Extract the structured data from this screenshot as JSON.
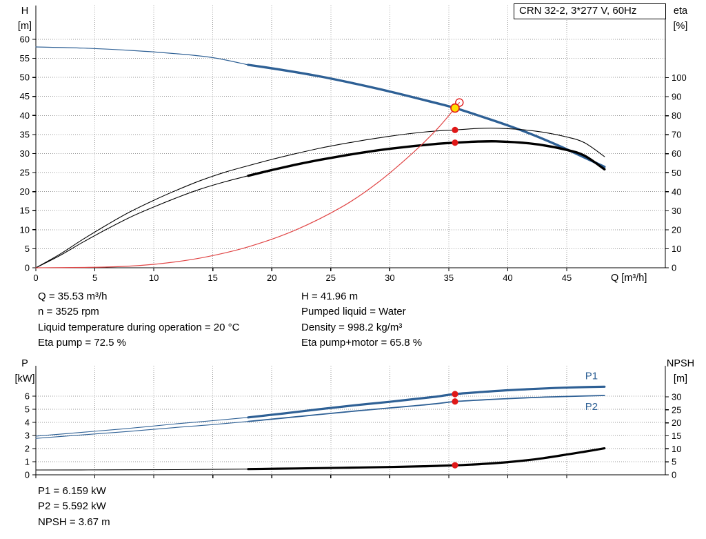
{
  "title_box": "CRN 32-2, 3*277 V, 60Hz",
  "duty_info": {
    "left": [
      "Q = 35.53 m³/h",
      "n = 3525 rpm",
      "Liquid temperature during operation = 20 °C",
      "Eta pump = 72.5 %"
    ],
    "right": [
      "H = 41.96 m",
      "Pumped liquid = Water",
      "Density = 998.2 kg/m³",
      "Eta pump+motor = 65.8 %"
    ],
    "bottom": [
      "P1 = 6.159 kW",
      "P2 = 5.592 kW",
      "NPSH = 3.67 m"
    ]
  },
  "colors": {
    "curve_blue": "#2e6095",
    "curve_black": "#000000",
    "curve_red": "#e04545",
    "marker_red": "#e01818",
    "duty_yellow": "#ffdf00"
  },
  "chart_data": [
    {
      "type": "line",
      "title": "CRN 32-2, 3*277 V, 60Hz",
      "x_axis": {
        "label": "Q [m³/h]",
        "min": 0,
        "max": 53.4,
        "ticks": [
          0,
          5,
          10,
          15,
          20,
          25,
          30,
          35,
          40,
          45
        ]
      },
      "y_left": {
        "label_lines": [
          "H",
          "[m]"
        ],
        "min": 0,
        "max": 60,
        "ticks": [
          0,
          5,
          10,
          15,
          20,
          25,
          30,
          35,
          40,
          45,
          50,
          55,
          60
        ]
      },
      "y_right": {
        "label_lines": [
          "eta",
          "[%]"
        ],
        "min": 0,
        "max": 100,
        "ticks": [
          0,
          10,
          20,
          30,
          40,
          50,
          60,
          70,
          80,
          90,
          100
        ]
      },
      "series": [
        {
          "name": "hq-curve-low",
          "axis": "left",
          "color": "#2e6095",
          "width": 1.2,
          "points": [
            [
              0,
              58
            ],
            [
              4,
              57.7
            ],
            [
              8,
              57.1
            ],
            [
              12,
              56.2
            ],
            [
              15,
              55.2
            ],
            [
              18,
              53.3
            ]
          ]
        },
        {
          "name": "hq-curve",
          "axis": "left",
          "color": "#2e6095",
          "width": 3.4,
          "points": [
            [
              18,
              53.3
            ],
            [
              21,
              51.9
            ],
            [
              24,
              50.3
            ],
            [
              27,
              48.4
            ],
            [
              30,
              46.3
            ],
            [
              33,
              44.0
            ],
            [
              35.53,
              41.96
            ],
            [
              38,
              39.5
            ],
            [
              40,
              37.4
            ],
            [
              42,
              35.1
            ],
            [
              44,
              32.5
            ],
            [
              46,
              29.7
            ],
            [
              48.2,
              26.5
            ]
          ]
        },
        {
          "name": "eta-pump-curve",
          "axis": "right",
          "color": "#000000",
          "width": 1.1,
          "points": [
            [
              0,
              0
            ],
            [
              2,
              7
            ],
            [
              4,
              15
            ],
            [
              6,
              22.5
            ],
            [
              8,
              29.5
            ],
            [
              10,
              35.5
            ],
            [
              12,
              41
            ],
            [
              14,
              46
            ],
            [
              16,
              50.2
            ],
            [
              18,
              53.7
            ],
            [
              20,
              57
            ],
            [
              22,
              60
            ],
            [
              24,
              62.8
            ],
            [
              26,
              65.2
            ],
            [
              28,
              67.3
            ],
            [
              30,
              69.2
            ],
            [
              32,
              70.8
            ],
            [
              34,
              72
            ],
            [
              35.53,
              72.5
            ],
            [
              37.5,
              73.3
            ],
            [
              39,
              73.4
            ],
            [
              41,
              72.8
            ],
            [
              43,
              71.3
            ],
            [
              45,
              68.8
            ],
            [
              46.5,
              65.8
            ],
            [
              48.2,
              58.5
            ]
          ]
        },
        {
          "name": "eta-pump-motor-curve-low",
          "axis": "right",
          "color": "#000000",
          "width": 1.1,
          "points": [
            [
              0,
              0
            ],
            [
              2,
              6.3
            ],
            [
              4,
              13.5
            ],
            [
              6,
              20.3
            ],
            [
              8,
              26.6
            ],
            [
              10,
              32
            ],
            [
              12,
              37
            ],
            [
              14,
              41.5
            ],
            [
              16,
              45.2
            ],
            [
              18,
              48.4
            ]
          ]
        },
        {
          "name": "eta-pump-motor-curve",
          "axis": "right",
          "color": "#000000",
          "width": 3.4,
          "points": [
            [
              18,
              48.4
            ],
            [
              20,
              51.4
            ],
            [
              22,
              54.2
            ],
            [
              24,
              56.7
            ],
            [
              26,
              58.9
            ],
            [
              28,
              60.9
            ],
            [
              30,
              62.6
            ],
            [
              32,
              64
            ],
            [
              34,
              65.2
            ],
            [
              35.53,
              65.8
            ],
            [
              37.5,
              66.4
            ],
            [
              39,
              66.5
            ],
            [
              41,
              65.9
            ],
            [
              43,
              64.5
            ],
            [
              45,
              62
            ],
            [
              46.5,
              59
            ],
            [
              48.2,
              51.8
            ]
          ]
        },
        {
          "name": "system-curve",
          "axis": "left",
          "color": "#e04545",
          "width": 1.2,
          "points": [
            [
              0,
              0
            ],
            [
              6,
              0.2
            ],
            [
              10,
              0.9
            ],
            [
              14,
              2.6
            ],
            [
              18,
              5.5
            ],
            [
              22,
              9.9
            ],
            [
              26,
              16.1
            ],
            [
              29,
              22.4
            ],
            [
              32,
              30.3
            ],
            [
              34,
              36.4
            ],
            [
              35.53,
              41.96
            ],
            [
              35.9,
              43.4
            ]
          ]
        }
      ],
      "markers": [
        {
          "name": "red-open-circle-marker",
          "x": 35.9,
          "y": 43.4,
          "axis": "left",
          "r": 5.5,
          "fill": "none",
          "stroke": "#e01818",
          "stroke_width": 1.4
        },
        {
          "name": "duty-point-marker",
          "x": 35.53,
          "y": 41.96,
          "axis": "left",
          "r": 6,
          "fill": "#ffdf00",
          "stroke": "#e01818",
          "stroke_width": 1.6
        },
        {
          "name": "eta-pump-point-marker",
          "x": 35.53,
          "y": 72.5,
          "axis": "right",
          "r": 4.6,
          "fill": "#e01818"
        },
        {
          "name": "eta-pump-motor-point-marker",
          "x": 35.53,
          "y": 65.8,
          "axis": "right",
          "r": 4.6,
          "fill": "#e01818"
        }
      ],
      "labels": []
    },
    {
      "type": "line",
      "title": "Power and NPSH curves",
      "x_axis": {
        "label": "",
        "min": 0,
        "max": 53.4,
        "ticks": [
          0,
          5,
          10,
          15,
          20,
          25,
          30,
          35,
          40,
          45
        ]
      },
      "y_left": {
        "label_lines": [
          "P",
          "[kW]"
        ],
        "min": 0,
        "max": 6,
        "ticks": [
          0,
          1,
          2,
          3,
          4,
          5,
          6
        ]
      },
      "y_right": {
        "label_lines": [
          "NPSH",
          "[m]"
        ],
        "min": 0,
        "max": 30,
        "ticks": [
          0,
          5,
          10,
          15,
          20,
          25,
          30
        ]
      },
      "series": [
        {
          "name": "p1-curve-low",
          "axis": "left",
          "color": "#2e6095",
          "width": 1.1,
          "points": [
            [
              0,
              2.95
            ],
            [
              4,
              3.25
            ],
            [
              8,
              3.55
            ],
            [
              12,
              3.9
            ],
            [
              15,
              4.13
            ],
            [
              18,
              4.38
            ]
          ]
        },
        {
          "name": "p1-curve",
          "axis": "left",
          "color": "#2e6095",
          "width": 3.2,
          "points": [
            [
              18,
              4.38
            ],
            [
              21,
              4.68
            ],
            [
              24,
              5.0
            ],
            [
              27,
              5.3
            ],
            [
              30,
              5.57
            ],
            [
              32,
              5.77
            ],
            [
              34,
              5.97
            ],
            [
              35.53,
              6.159
            ],
            [
              38,
              6.33
            ],
            [
              40,
              6.45
            ],
            [
              42,
              6.54
            ],
            [
              44,
              6.62
            ],
            [
              46,
              6.68
            ],
            [
              48.2,
              6.72
            ]
          ]
        },
        {
          "name": "p2-curve-low",
          "axis": "left",
          "color": "#2e6095",
          "width": 1.1,
          "points": [
            [
              0,
              2.78
            ],
            [
              4,
              3.05
            ],
            [
              8,
              3.32
            ],
            [
              12,
              3.62
            ],
            [
              15,
              3.83
            ],
            [
              18,
              4.07
            ]
          ]
        },
        {
          "name": "p2-curve",
          "axis": "left",
          "color": "#2e6095",
          "width": 1.8,
          "points": [
            [
              18,
              4.07
            ],
            [
              21,
              4.33
            ],
            [
              24,
              4.6
            ],
            [
              27,
              4.86
            ],
            [
              30,
              5.1
            ],
            [
              32,
              5.26
            ],
            [
              34,
              5.43
            ],
            [
              35.53,
              5.592
            ],
            [
              38,
              5.72
            ],
            [
              40,
              5.81
            ],
            [
              42,
              5.89
            ],
            [
              44,
              5.95
            ],
            [
              46,
              6.0
            ],
            [
              48.2,
              6.05
            ]
          ]
        },
        {
          "name": "npsh-curve-low",
          "axis": "right",
          "color": "#000000",
          "width": 1.1,
          "points": [
            [
              0,
              1.85
            ],
            [
              6,
              1.9
            ],
            [
              12,
              2.0
            ],
            [
              18,
              2.2
            ]
          ]
        },
        {
          "name": "npsh-curve",
          "axis": "right",
          "color": "#000000",
          "width": 3.2,
          "points": [
            [
              18,
              2.2
            ],
            [
              22,
              2.45
            ],
            [
              26,
              2.72
            ],
            [
              30,
              3.0
            ],
            [
              33,
              3.3
            ],
            [
              35.53,
              3.67
            ],
            [
              37,
              3.95
            ],
            [
              39,
              4.5
            ],
            [
              41,
              5.3
            ],
            [
              43,
              6.4
            ],
            [
              45,
              7.8
            ],
            [
              46.5,
              8.9
            ],
            [
              48.2,
              10.2
            ]
          ]
        }
      ],
      "markers": [
        {
          "name": "p1-point-marker",
          "x": 35.53,
          "y": 6.159,
          "axis": "left",
          "r": 4.6,
          "fill": "#e01818"
        },
        {
          "name": "p2-point-marker",
          "x": 35.53,
          "y": 5.592,
          "axis": "left",
          "r": 4.6,
          "fill": "#e01818"
        },
        {
          "name": "npsh-point-marker",
          "x": 35.53,
          "y": 3.67,
          "axis": "right",
          "r": 4.6,
          "fill": "#e01818"
        }
      ],
      "labels": [
        {
          "name": "p1-label",
          "text": "P1",
          "x": 47.1,
          "y": 7.3,
          "axis": "left",
          "color": "#2e6095"
        },
        {
          "name": "p2-label",
          "text": "P2",
          "x": 47.1,
          "y": 4.95,
          "axis": "left",
          "color": "#2e6095"
        }
      ]
    }
  ]
}
